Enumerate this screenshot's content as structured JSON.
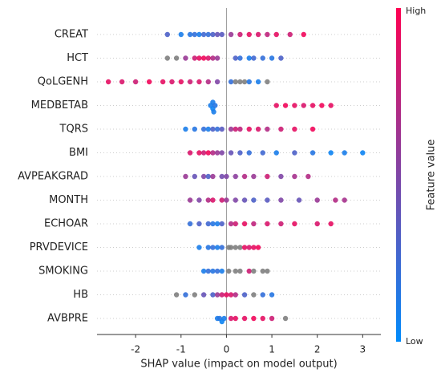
{
  "chart_data": {
    "type": "beeswarm",
    "xlabel": "SHAP value (impact on model output)",
    "xlim": [
      -2.85,
      3.4
    ],
    "xticks": [
      -2,
      -1,
      0,
      1,
      2,
      3
    ],
    "colorbar": {
      "label": "Feature value",
      "high": "High",
      "low": "Low",
      "colors": [
        "#008bfb",
        "#ff0051"
      ]
    },
    "missing_color": "#808080",
    "features": [
      {
        "name": "CREAT",
        "shap": [
          -1.3,
          -1.0,
          -0.8,
          -0.7,
          -0.6,
          -0.5,
          -0.4,
          -0.3,
          -0.2,
          -0.1,
          0.1,
          0.3,
          0.5,
          0.7,
          0.9,
          1.1,
          1.4,
          1.7
        ],
        "feature_value": [
          0.3,
          0.1,
          0.15,
          0.2,
          0.1,
          0.25,
          0.2,
          0.3,
          0.4,
          0.35,
          0.6,
          0.8,
          0.9,
          0.85,
          0.75,
          0.9,
          0.8,
          0.95
        ]
      },
      {
        "name": "HCT",
        "shap": [
          -1.3,
          -1.1,
          -0.9,
          -0.7,
          -0.6,
          -0.5,
          -0.4,
          -0.3,
          -0.2,
          0.2,
          0.3,
          0.5,
          0.6,
          0.8,
          1.0,
          1.2
        ],
        "feature_value": [
          null,
          null,
          0.6,
          0.8,
          0.9,
          0.95,
          0.85,
          0.7,
          0.6,
          0.3,
          0.2,
          0.1,
          0.25,
          0.2,
          0.15,
          0.3
        ]
      },
      {
        "name": "QoLGENH",
        "shap": [
          -2.6,
          -2.3,
          -2.0,
          -1.7,
          -1.4,
          -1.2,
          -1.0,
          -0.8,
          -0.6,
          -0.4,
          -0.2,
          0.1,
          0.2,
          0.3,
          0.4,
          0.5,
          0.7,
          0.9
        ],
        "feature_value": [
          0.9,
          0.85,
          0.8,
          0.95,
          0.9,
          0.85,
          0.9,
          0.8,
          0.85,
          0.7,
          0.5,
          0.2,
          null,
          null,
          null,
          0.15,
          0.1,
          null
        ]
      },
      {
        "name": "MEDBETAB",
        "shap": [
          -0.35,
          -0.3,
          -0.28,
          -0.25,
          -0.3,
          1.1,
          1.3,
          1.5,
          1.7,
          1.9,
          2.1,
          2.3
        ],
        "feature_value": [
          0.1,
          0.05,
          0.1,
          0.15,
          0.1,
          0.9,
          0.95,
          0.9,
          0.85,
          0.9,
          0.95,
          0.9
        ]
      },
      {
        "name": "TQRS",
        "shap": [
          -0.9,
          -0.7,
          -0.5,
          -0.4,
          -0.3,
          -0.2,
          -0.1,
          0.1,
          0.2,
          0.3,
          0.5,
          0.7,
          0.9,
          1.2,
          1.5,
          1.9
        ],
        "feature_value": [
          0.1,
          0.15,
          0.2,
          0.1,
          0.3,
          0.2,
          0.35,
          0.6,
          0.8,
          0.75,
          0.9,
          0.85,
          0.7,
          0.8,
          0.9,
          0.95
        ]
      },
      {
        "name": "BMI",
        "shap": [
          -0.8,
          -0.6,
          -0.5,
          -0.4,
          -0.3,
          -0.2,
          -0.1,
          0.1,
          0.3,
          0.5,
          0.8,
          1.1,
          1.5,
          1.9,
          2.3,
          2.6,
          3.0
        ],
        "feature_value": [
          0.85,
          0.9,
          0.8,
          0.95,
          0.7,
          0.6,
          0.5,
          0.4,
          0.3,
          0.2,
          0.25,
          0.1,
          0.3,
          0.15,
          0.05,
          0.1,
          0.05
        ]
      },
      {
        "name": "AVPEAKGRAD",
        "shap": [
          -0.9,
          -0.7,
          -0.5,
          -0.4,
          -0.3,
          -0.1,
          0,
          0.2,
          0.4,
          0.6,
          0.9,
          1.2,
          1.5,
          1.8
        ],
        "feature_value": [
          0.6,
          0.4,
          0.5,
          0.3,
          0.6,
          0.45,
          0.5,
          0.55,
          0.7,
          0.6,
          0.8,
          0.5,
          0.65,
          0.7
        ]
      },
      {
        "name": "MONTH",
        "shap": [
          -0.8,
          -0.6,
          -0.4,
          -0.3,
          -0.1,
          0,
          0.2,
          0.4,
          0.6,
          0.9,
          1.2,
          1.6,
          2.0,
          2.4,
          2.6
        ],
        "feature_value": [
          0.6,
          0.5,
          0.7,
          0.85,
          0.8,
          0.6,
          0.5,
          0.4,
          0.3,
          0.35,
          0.5,
          0.4,
          0.6,
          0.7,
          0.65
        ]
      },
      {
        "name": "ECHOAR",
        "shap": [
          -0.8,
          -0.6,
          -0.4,
          -0.3,
          -0.2,
          -0.1,
          0.1,
          0.2,
          0.4,
          0.6,
          0.9,
          1.2,
          1.5,
          2.0,
          2.3
        ],
        "feature_value": [
          0.2,
          0.3,
          0.25,
          0.15,
          0.1,
          0.3,
          0.7,
          0.8,
          0.9,
          0.75,
          0.85,
          0.8,
          0.9,
          0.85,
          0.9
        ]
      },
      {
        "name": "PRVDEVICE",
        "shap": [
          -0.6,
          -0.4,
          -0.3,
          -0.2,
          -0.1,
          0.05,
          0.1,
          0.2,
          0.3,
          0.4,
          0.5,
          0.6,
          0.7
        ],
        "feature_value": [
          0.1,
          0.15,
          0.2,
          0.1,
          0.2,
          null,
          null,
          null,
          null,
          0.9,
          0.85,
          0.9,
          0.95
        ]
      },
      {
        "name": "SMOKING",
        "shap": [
          -0.5,
          -0.4,
          -0.3,
          -0.2,
          -0.1,
          0.05,
          0.2,
          0.3,
          0.5,
          0.6,
          0.8,
          0.9
        ],
        "feature_value": [
          0.1,
          0.2,
          0.15,
          0.2,
          0.1,
          null,
          null,
          null,
          0.8,
          null,
          null,
          null
        ]
      },
      {
        "name": "HB",
        "shap": [
          -1.1,
          -0.9,
          -0.7,
          -0.5,
          -0.3,
          -0.2,
          -0.1,
          0,
          0.1,
          0.2,
          0.4,
          0.6,
          0.8,
          1.0
        ],
        "feature_value": [
          null,
          0.2,
          null,
          0.4,
          0.3,
          0.6,
          0.8,
          0.9,
          0.85,
          0.7,
          0.3,
          null,
          0.2,
          0.15
        ]
      },
      {
        "name": "AVBPRE",
        "shap": [
          -0.2,
          -0.15,
          -0.1,
          -0.05,
          0.1,
          0.2,
          0.4,
          0.6,
          0.8,
          1.0,
          1.3
        ],
        "feature_value": [
          0.1,
          0.15,
          0.05,
          0.1,
          0.85,
          0.9,
          0.9,
          0.95,
          0.9,
          0.8,
          null
        ]
      }
    ]
  }
}
